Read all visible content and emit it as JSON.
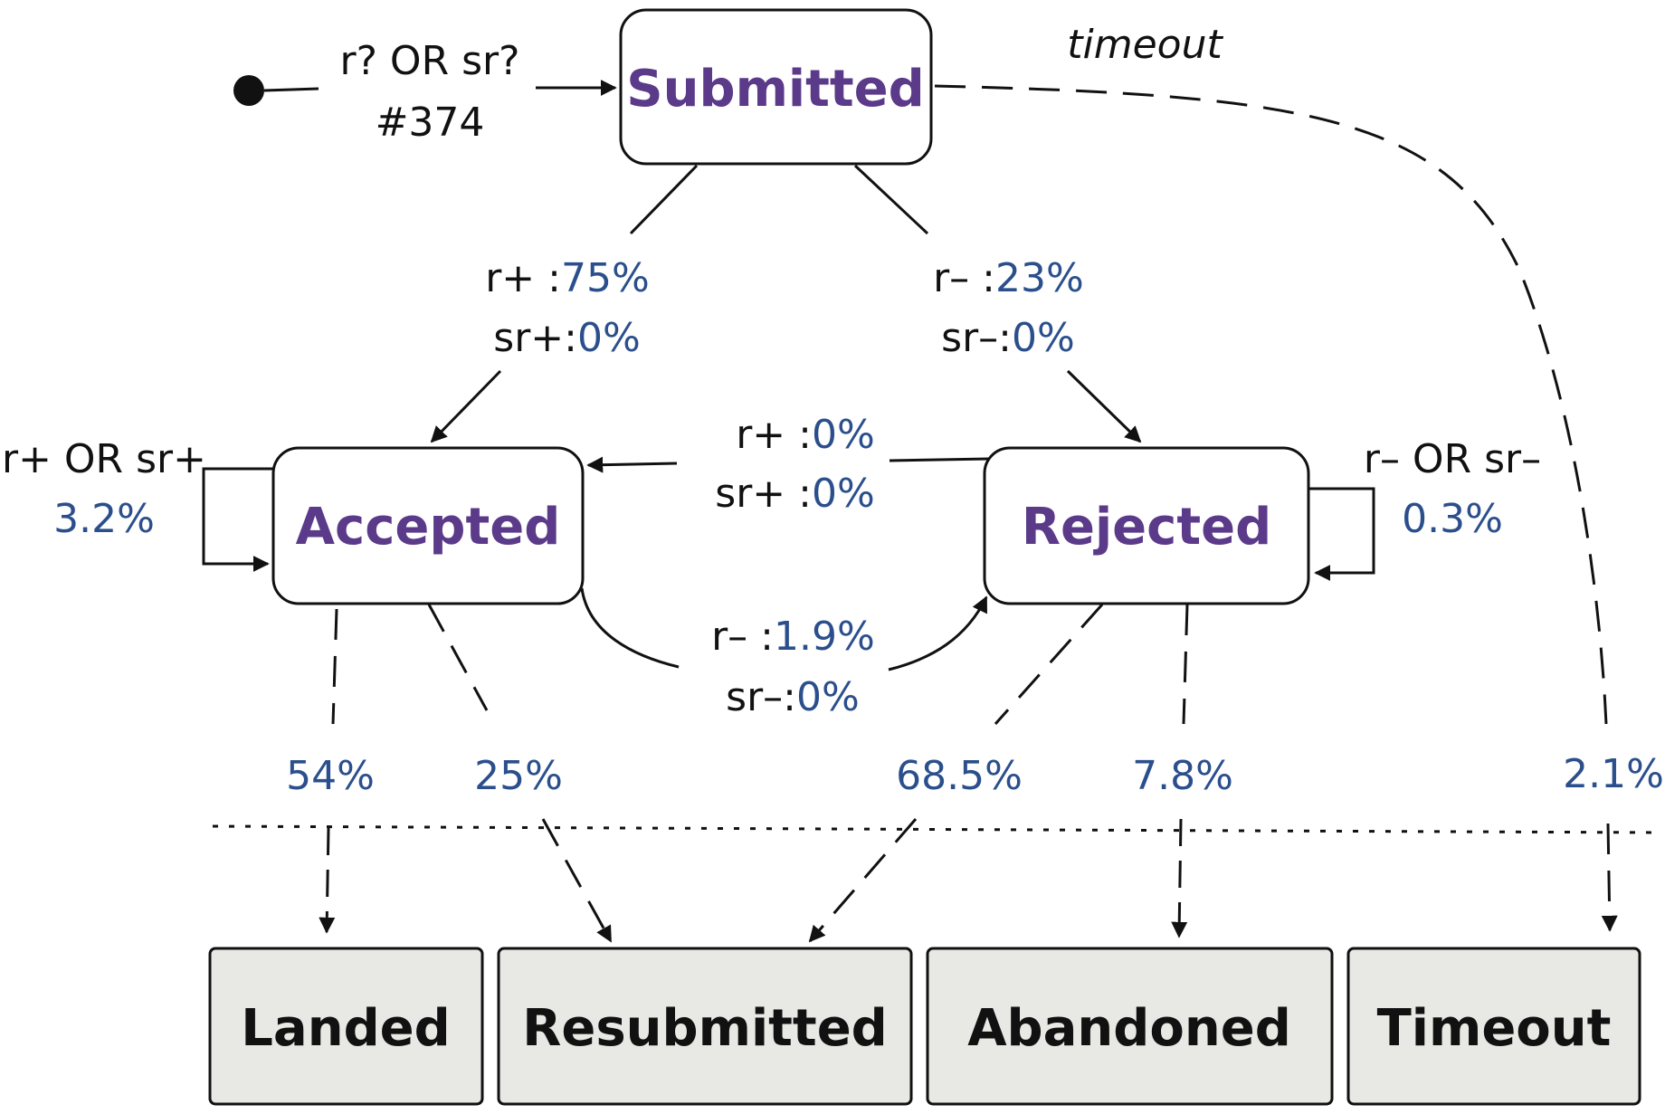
{
  "states": {
    "submitted": "Submitted",
    "accepted": "Accepted",
    "rejected": "Rejected"
  },
  "final_states": {
    "landed": "Landed",
    "resubmitted": "Resubmitted",
    "abandoned": "Abandoned",
    "timeout": "Timeout"
  },
  "initial_transition": {
    "line1": "r? OR sr?",
    "line2": "#374"
  },
  "submitted_to_accepted": {
    "r_label": "r+ : ",
    "r_value": "75%",
    "sr_label": "sr+: ",
    "sr_value": "0%"
  },
  "submitted_to_rejected": {
    "r_label": "r– : ",
    "r_value": "23%",
    "sr_label": "sr–: ",
    "sr_value": "0%"
  },
  "rejected_to_accepted": {
    "r_label": "r+ : ",
    "r_value": "0%",
    "sr_label": "sr+ : ",
    "sr_value": "0%"
  },
  "accepted_to_rejected": {
    "r_label": "r– : ",
    "r_value": "1.9%",
    "sr_label": "sr–: ",
    "sr_value": "0%"
  },
  "accepted_self": {
    "label": "r+ OR sr+",
    "value": "3.2%"
  },
  "rejected_self": {
    "label": "r– OR sr–",
    "value": "0.3%"
  },
  "timeout_transition": {
    "label": "timeout",
    "value": "2.1%"
  },
  "outcomes": {
    "accepted_to_landed": "54%",
    "accepted_to_resubmitted": "25%",
    "rejected_to_resubmitted": "68.5%",
    "rejected_to_abandoned": "7.8%"
  },
  "colors": {
    "state_text": "#5b3a8a",
    "percent_text": "#2b4f8c",
    "final_fill": "#e8e8e4",
    "line": "#111111"
  }
}
